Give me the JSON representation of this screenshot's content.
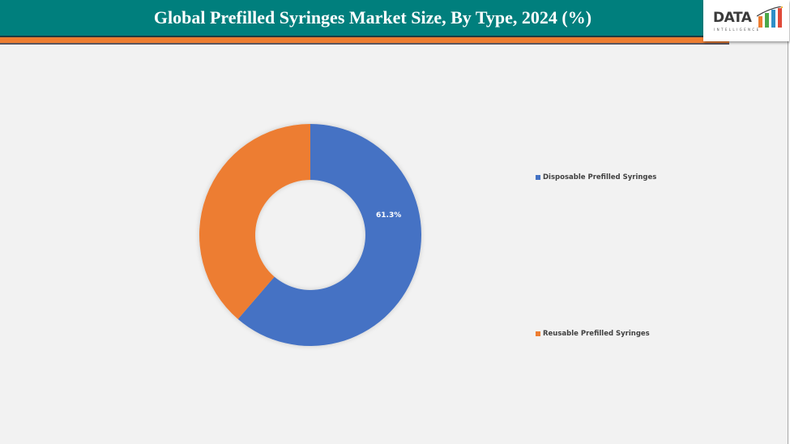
{
  "header": {
    "title": "Global Prefilled Syringes Market Size, By Type, 2024 (%)",
    "logo_text": "DATA",
    "logo_subtext": "INTELLIGENCE"
  },
  "colors": {
    "header_bg": "#007f7d",
    "accent_band": "#ed7d31",
    "disposable": "#4472c4",
    "reusable": "#ed7d31",
    "background": "#f2f2f2"
  },
  "legend": [
    {
      "label": "Disposable Prefilled Syringes",
      "color": "#4472c4"
    },
    {
      "label": "Reusable Prefilled Syringes",
      "color": "#ed7d31"
    }
  ],
  "labels": {
    "disposable_value": "61.3%"
  },
  "chart_data": {
    "type": "pie",
    "subtype": "donut",
    "title": "Global Prefilled Syringes Market Size, By Type, 2024 (%)",
    "categories": [
      "Disposable Prefilled Syringes",
      "Reusable Prefilled Syringes"
    ],
    "values": [
      61.3,
      38.7
    ],
    "unit": "%",
    "colors": [
      "#4472c4",
      "#ed7d31"
    ],
    "data_labels_shown": [
      "61.3%"
    ],
    "start_angle": "12 o'clock, clockwise",
    "legend_position": "right"
  }
}
